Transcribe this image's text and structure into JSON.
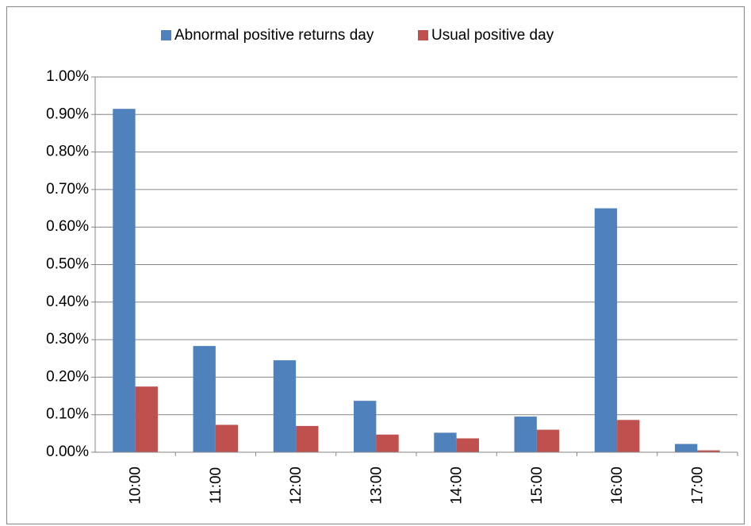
{
  "chart_data": {
    "type": "bar",
    "categories": [
      "10:00",
      "11:00",
      "12:00",
      "13:00",
      "14:00",
      "15:00",
      "16:00",
      "17:00"
    ],
    "series": [
      {
        "name": "Abnormal positive returns day",
        "color": "#4f81bd",
        "values": [
          0.915,
          0.283,
          0.245,
          0.137,
          0.052,
          0.095,
          0.65,
          0.022
        ]
      },
      {
        "name": "Usual positive day",
        "color": "#c0504d",
        "values": [
          0.175,
          0.073,
          0.07,
          0.047,
          0.037,
          0.06,
          0.086,
          0.005
        ]
      }
    ],
    "ylim": [
      0,
      1
    ],
    "yticks": [
      {
        "value": 0,
        "label": "0.00%"
      },
      {
        "value": 0.1,
        "label": "0.10%"
      },
      {
        "value": 0.2,
        "label": "0.20%"
      },
      {
        "value": 0.3,
        "label": "0.30%"
      },
      {
        "value": 0.4,
        "label": "0.40%"
      },
      {
        "value": 0.5,
        "label": "0.50%"
      },
      {
        "value": 0.6,
        "label": "0.60%"
      },
      {
        "value": 0.7,
        "label": "0.70%"
      },
      {
        "value": 0.8,
        "label": "0.80%"
      },
      {
        "value": 0.9,
        "label": "0.90%"
      },
      {
        "value": 1,
        "label": "1.00%"
      }
    ],
    "grid": true,
    "legend": "top"
  }
}
